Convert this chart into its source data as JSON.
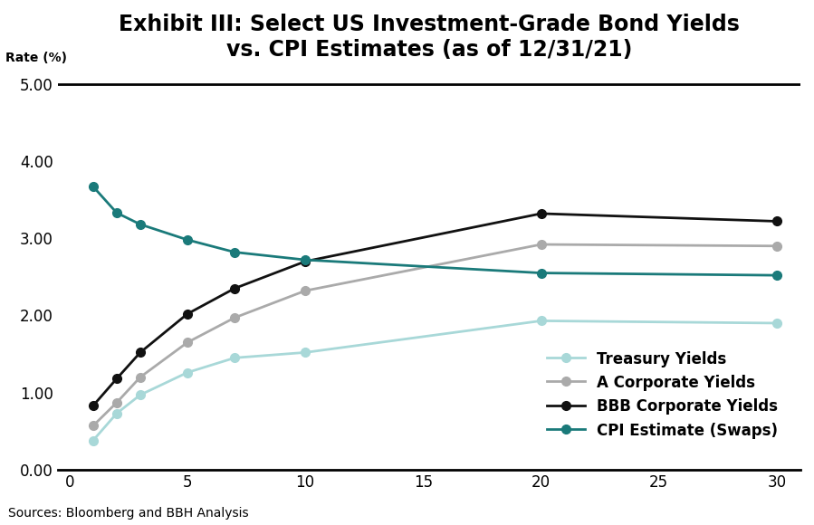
{
  "title_line1": "Exhibit III: Select US Investment-Grade Bond Yields",
  "title_line2": "vs. CPI Estimates (as of 12/31/21)",
  "ylabel": "Rate (%)",
  "source": "Sources: Bloomberg and BBH Analysis",
  "x_ticks": [
    0,
    5,
    10,
    15,
    20,
    25,
    30
  ],
  "y_ticks": [
    0.0,
    1.0,
    2.0,
    3.0,
    4.0,
    5.0
  ],
  "xlim": [
    -0.5,
    31
  ],
  "ylim": [
    0.0,
    5.2
  ],
  "series": {
    "Treasury Yields": {
      "x": [
        1,
        2,
        3,
        5,
        7,
        10,
        20,
        30
      ],
      "y": [
        0.38,
        0.73,
        0.97,
        1.26,
        1.45,
        1.52,
        1.93,
        1.9
      ],
      "color": "#a8d8d8",
      "linewidth": 2.0,
      "markersize": 7
    },
    "A Corporate Yields": {
      "x": [
        1,
        2,
        3,
        5,
        7,
        10,
        20,
        30
      ],
      "y": [
        0.57,
        0.87,
        1.2,
        1.65,
        1.97,
        2.32,
        2.92,
        2.9
      ],
      "color": "#aaaaaa",
      "linewidth": 2.0,
      "markersize": 7
    },
    "BBB Corporate Yields": {
      "x": [
        1,
        2,
        3,
        5,
        7,
        10,
        20,
        30
      ],
      "y": [
        0.83,
        1.18,
        1.52,
        2.02,
        2.35,
        2.7,
        3.32,
        3.22
      ],
      "color": "#111111",
      "linewidth": 2.0,
      "markersize": 7
    },
    "CPI Estimate (Swaps)": {
      "x": [
        1,
        2,
        3,
        5,
        7,
        10,
        20,
        30
      ],
      "y": [
        3.67,
        3.33,
        3.18,
        2.98,
        2.82,
        2.72,
        2.55,
        2.52
      ],
      "color": "#1a7a7a",
      "linewidth": 2.0,
      "markersize": 7
    }
  },
  "background_color": "#ffffff",
  "title_fontsize": 17,
  "ylabel_fontsize": 10,
  "tick_fontsize": 12,
  "legend_fontsize": 12,
  "source_fontsize": 10
}
